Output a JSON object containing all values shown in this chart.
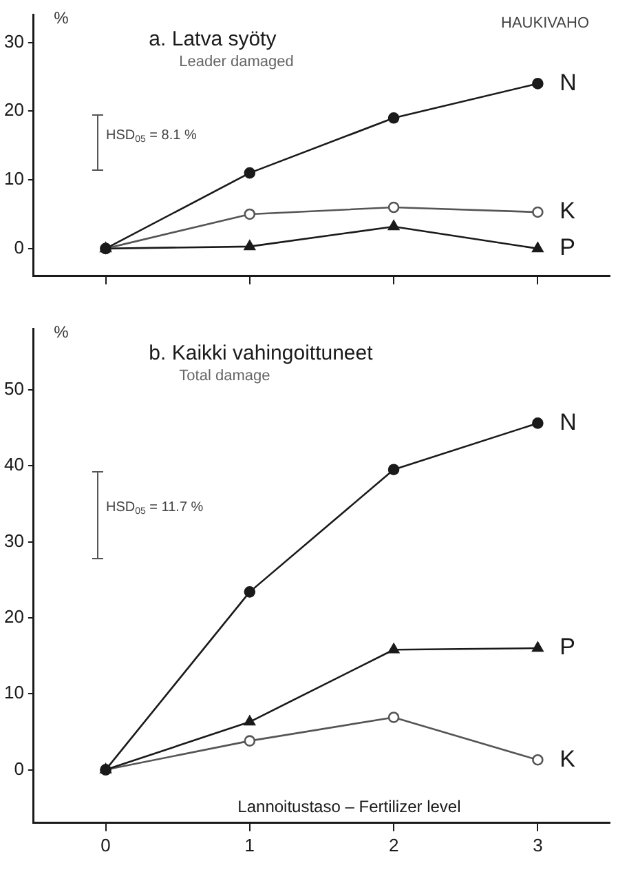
{
  "chart_data": [
    {
      "type": "line",
      "title": "a. Latva syöty",
      "subtitle": "Leader damaged",
      "ylabel": "%",
      "annotations": [
        "HAUKIVAHO",
        "HSD$_{05}$ = 8.1 %"
      ],
      "x": [
        0,
        1,
        2,
        3
      ],
      "xlim": [
        -0.5,
        3.5
      ],
      "xticks": [
        {
          "value": 0,
          "label": null
        },
        {
          "value": 1,
          "label": null
        },
        {
          "value": 2,
          "label": null
        },
        {
          "value": 3,
          "label": null
        }
      ],
      "ylim": [
        -4,
        34
      ],
      "yticks": [
        0,
        10,
        20,
        30
      ],
      "grid": false,
      "legend": false,
      "tick_labels": "y",
      "series": [
        {
          "name": "N",
          "color": "#1a1a1a",
          "marker": "circle",
          "values": [
            0,
            11,
            19,
            24
          ]
        },
        {
          "name": "K",
          "color": "#555555",
          "marker": "circle-open",
          "values": [
            0,
            5,
            6,
            5.3
          ]
        },
        {
          "name": "P",
          "color": "#1a1a1a",
          "marker": "triangle",
          "values": [
            0,
            0.3,
            3.2,
            0
          ]
        }
      ]
    },
    {
      "type": "line",
      "title": "b. Kaikki vahingoittuneet",
      "subtitle": "Total damage",
      "ylabel": "%",
      "xlabel": "Lannoitustaso – Fertilizer level",
      "annotations": [
        "HSD$_{05}$ = 11.7 %"
      ],
      "x": [
        0,
        1,
        2,
        3
      ],
      "xlim": [
        -0.5,
        3.5
      ],
      "xticks": [
        0,
        1,
        2,
        3
      ],
      "ylim": [
        -7,
        58
      ],
      "yticks": [
        0,
        10,
        20,
        30,
        40,
        50
      ],
      "grid": false,
      "legend": false,
      "series": [
        {
          "name": "N",
          "color": "#1a1a1a",
          "marker": "circle",
          "values": [
            0,
            23.4,
            39.5,
            45.6
          ]
        },
        {
          "name": "P",
          "color": "#1a1a1a",
          "marker": "triangle",
          "values": [
            0,
            6.3,
            15.8,
            16
          ]
        },
        {
          "name": "K",
          "color": "#555555",
          "marker": "circle-open",
          "values": [
            0,
            3.8,
            6.9,
            1.3
          ]
        }
      ]
    }
  ]
}
